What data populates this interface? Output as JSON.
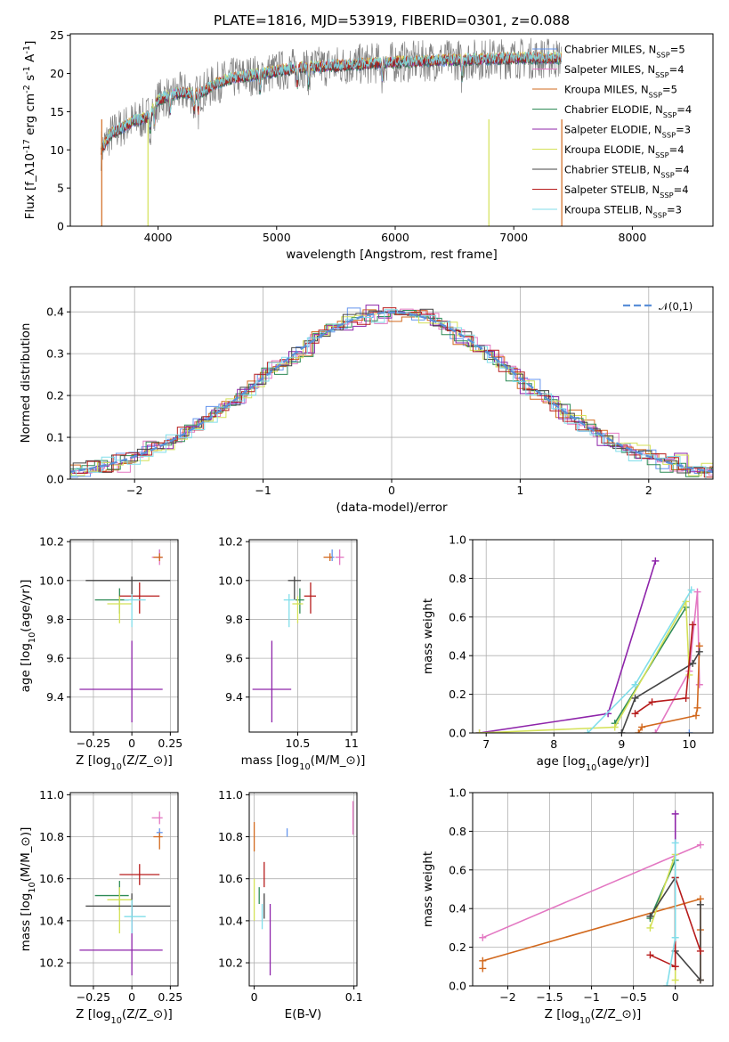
{
  "chart_data": [
    {
      "id": "spectrum",
      "type": "line",
      "title": "PLATE=1816, MJD=53919, FIBERID=0301, z=0.088",
      "xlabel": "wavelength [Angstrom, rest frame]",
      "ylabel": "Flux [f$_\\lambda$10$^{-17}$ erg cm$^{-2}$ s$^{-1}$ A$^{-1}$]",
      "xlim": [
        3260,
        8680
      ],
      "ylim": [
        0,
        25.2
      ],
      "xticks": [
        4000,
        5000,
        6000,
        7000,
        8000
      ],
      "yticks": [
        0,
        5,
        10,
        15,
        20,
        25
      ],
      "grid": false,
      "legend_position": "upper right",
      "continuum": {
        "x": [
          3520,
          3600,
          3700,
          3800,
          3900,
          4000,
          4100,
          4200,
          4300,
          4400,
          4500,
          4600,
          4800,
          5000,
          5200,
          5500,
          5800,
          6000,
          6200,
          6500,
          6800,
          7000,
          7200,
          7400
        ],
        "y": [
          10,
          12,
          13,
          13.8,
          14.2,
          16.5,
          17.2,
          17.5,
          17.3,
          17.8,
          18.8,
          19.3,
          19.8,
          20.3,
          20.8,
          21.0,
          21.3,
          21.5,
          21.6,
          21.8,
          21.9,
          22.0,
          22.0,
          22.0
        ]
      },
      "series": [
        {
          "name": "Chabrier MILES, N$_{SSP}$=5",
          "color": "#6495ed"
        },
        {
          "name": "Salpeter MILES, N$_{SSP}$=4",
          "color": "#e377c2"
        },
        {
          "name": "Kroupa MILES, N$_{SSP}$=5",
          "color": "#d2691e"
        },
        {
          "name": "Chabrier ELODIE, N$_{SSP}$=4",
          "color": "#2e8b57"
        },
        {
          "name": "Salpeter ELODIE, N$_{SSP}$=3",
          "color": "#8e24aa"
        },
        {
          "name": "Kroupa ELODIE, N$_{SSP}$=4",
          "color": "#d4e157"
        },
        {
          "name": "Chabrier STELIB, N$_{SSP}$=4",
          "color": "#444444"
        },
        {
          "name": "Salpeter STELIB, N$_{SSP}$=4",
          "color": "#b71c1c"
        },
        {
          "name": "Kroupa STELIB, N$_{SSP}$=3",
          "color": "#80deea"
        }
      ]
    },
    {
      "id": "residuals",
      "type": "histogram",
      "xlabel": "(data-model)/error",
      "ylabel": "Normed distribution",
      "xlim": [
        -2.5,
        2.5
      ],
      "ylim": [
        0,
        0.46
      ],
      "xticks": [
        -2,
        -1,
        0,
        1,
        2
      ],
      "yticks": [
        0.0,
        0.1,
        0.2,
        0.3,
        0.4
      ],
      "grid": true,
      "legend_position": "upper right",
      "reference": {
        "name": "$\\mathcal{N}(0,1)$",
        "color": "#5b8fd8"
      },
      "bin_width": 0.1
    },
    {
      "id": "age_vs_Z",
      "type": "errorbar",
      "xlabel": "Z [log$_{10}$($Z/Z_\\odot$)]",
      "ylabel": "age  [log$_{10}$($age/yr$)]",
      "xlim": [
        -0.4,
        0.3
      ],
      "ylim": [
        9.22,
        10.21
      ],
      "xticks": [
        -0.25,
        0.0,
        0.25
      ],
      "yticks": [
        9.4,
        9.6,
        9.8,
        10.0,
        10.2
      ],
      "grid": true
    },
    {
      "id": "age_vs_mass",
      "type": "errorbar",
      "xlabel": "mass [log$_{10}$($M/M_\\odot$)]",
      "xlim": [
        10.05,
        11.05
      ],
      "ylim": [
        9.22,
        10.21
      ],
      "xticks": [
        10.5,
        11.0
      ],
      "yticks": [
        9.4,
        9.6,
        9.8,
        10.0,
        10.2
      ],
      "grid": true
    },
    {
      "id": "weight_vs_age",
      "type": "line",
      "xlabel": "age  [log$_{10}$($age/yr$)]",
      "ylabel": "mass weight",
      "xlim": [
        6.8,
        10.35
      ],
      "ylim": [
        0,
        1.0
      ],
      "xticks": [
        7,
        8,
        9,
        10
      ],
      "yticks": [
        0.0,
        0.2,
        0.4,
        0.6,
        0.8,
        1.0
      ],
      "grid": true
    },
    {
      "id": "mass_vs_Z",
      "type": "errorbar",
      "xlabel": "Z [log$_{10}$($Z/Z_\\odot$)]",
      "ylabel": "mass [log$_{10}$($M/M_\\odot$)]",
      "xlim": [
        -0.4,
        0.3
      ],
      "ylim": [
        10.09,
        11.01
      ],
      "xticks": [
        -0.25,
        0.0,
        0.25
      ],
      "yticks": [
        10.2,
        10.4,
        10.6,
        10.8,
        11.0
      ],
      "grid": true
    },
    {
      "id": "mass_vs_ebv",
      "type": "errorbar",
      "xlabel": "E(B-V)",
      "xlim": [
        -0.005,
        0.103
      ],
      "ylim": [
        10.09,
        11.01
      ],
      "xticks": [
        0.0,
        0.1
      ],
      "yticks": [
        10.2,
        10.4,
        10.6,
        10.8,
        11.0
      ],
      "grid": true
    },
    {
      "id": "weight_vs_Z",
      "type": "line",
      "xlabel": "Z [log$_{10}$($Z/Z_\\odot$)]",
      "ylabel": "mass weight",
      "xlim": [
        -2.42,
        0.45
      ],
      "ylim": [
        0,
        1.0
      ],
      "xticks": [
        -2.0,
        -1.5,
        -1.0,
        -0.5,
        0.0
      ],
      "yticks": [
        0.0,
        0.2,
        0.4,
        0.6,
        0.8,
        1.0
      ],
      "grid": true
    }
  ],
  "models": [
    {
      "name": "Chabrier MILES",
      "color": "#6495ed",
      "age": 10.12,
      "age_err": [
        0.02,
        0.04
      ],
      "Z": 0.18,
      "Z_err": [
        0.02,
        0.02
      ],
      "mass": 10.82,
      "mass_err": [
        0.02,
        0.02
      ],
      "mass_x_err": [
        0.02,
        0.02
      ],
      "ebv": 0.033,
      "ebv_err": [
        0.02,
        0.02
      ],
      "weights_age": [
        [
          10.0,
          0.0
        ]
      ],
      "weights_Z": []
    },
    {
      "name": "Salpeter MILES",
      "color": "#e377c2",
      "age": 10.12,
      "age_err": [
        0.04,
        0.04
      ],
      "Z": 0.18,
      "Z_err": [
        0.05,
        0.02
      ],
      "mass": 10.89,
      "mass_err": [
        0.03,
        0.03
      ],
      "mass_x_err": [
        0.04,
        0.04
      ],
      "ebv": 0.099,
      "ebv_err": [
        0.08,
        0.08
      ],
      "weights_age": [
        [
          9.5,
          0.0
        ],
        [
          10.0,
          0.32
        ],
        [
          10.12,
          0.73
        ],
        [
          10.15,
          0.25
        ]
      ],
      "weights_Z": [
        [
          -2.3,
          0.25
        ],
        [
          0.3,
          0.73
        ]
      ]
    },
    {
      "name": "Kroupa MILES",
      "color": "#d2691e",
      "age": 10.12,
      "age_err": [
        0.02,
        0.02
      ],
      "Z": 0.18,
      "Z_err": [
        0.04,
        0.02
      ],
      "mass": 10.8,
      "mass_err": [
        0.06,
        0.02
      ],
      "mass_x_err": [
        0.06,
        0.02
      ],
      "ebv": 0.0,
      "ebv_err": [
        0.07,
        0.07
      ],
      "weights_age": [
        [
          9.25,
          0.0
        ],
        [
          9.3,
          0.03
        ],
        [
          10.1,
          0.09
        ],
        [
          10.12,
          0.13
        ],
        [
          10.15,
          0.45
        ]
      ],
      "weights_Z": [
        [
          -2.3,
          0.09
        ],
        [
          -2.3,
          0.13
        ],
        [
          0.3,
          0.45
        ],
        [
          0.3,
          0.29
        ],
        [
          0.3,
          0.03
        ]
      ]
    },
    {
      "name": "Chabrier ELODIE",
      "color": "#2e8b57",
      "age": 9.9,
      "age_err": [
        0.07,
        0.06
      ],
      "Z": -0.08,
      "Z_err": [
        0.16,
        0.06
      ],
      "mass": 10.52,
      "mass_err": [
        0.07,
        0.07
      ],
      "mass_x_err": [
        0.04,
        0.04
      ],
      "ebv": 0.005,
      "ebv_err": [
        0.04,
        0.04
      ],
      "weights_age": [
        [
          8.9,
          0.05
        ],
        [
          9.95,
          0.65
        ]
      ],
      "weights_Z": [
        [
          -0.3,
          0.35
        ],
        [
          0.0,
          0.65
        ]
      ]
    },
    {
      "name": "Salpeter ELODIE",
      "color": "#8e24aa",
      "age": 9.44,
      "age_err": [
        0.17,
        0.25
      ],
      "Z": 0.0,
      "Z_err": [
        0.34,
        0.2
      ],
      "mass": 10.26,
      "mass_err": [
        0.12,
        0.22
      ],
      "mass_x_err": [
        0.18,
        0.18
      ],
      "ebv": 0.016,
      "ebv_err": [
        0.12,
        0.22
      ],
      "weights_age": [
        [
          6.9,
          0.0
        ],
        [
          8.8,
          0.1
        ],
        [
          9.5,
          0.89
        ]
      ],
      "weights_Z": [
        [
          0.0,
          0.1
        ],
        [
          0.0,
          0.89
        ]
      ]
    },
    {
      "name": "Kroupa ELODIE",
      "color": "#d4e157",
      "age": 9.88,
      "age_err": [
        0.1,
        0.04
      ],
      "Z": -0.08,
      "Z_err": [
        0.08,
        0.08
      ],
      "mass": 10.5,
      "mass_err": [
        0.16,
        0.06
      ],
      "mass_x_err": [
        0.05,
        0.05
      ],
      "ebv": 0.0,
      "ebv_err": [
        0.1,
        0.1
      ],
      "weights_age": [
        [
          6.9,
          0.0
        ],
        [
          8.9,
          0.03
        ],
        [
          9.95,
          0.68
        ],
        [
          10.0,
          0.3
        ]
      ],
      "weights_Z": [
        [
          -0.3,
          0.3
        ],
        [
          0.0,
          0.68
        ],
        [
          0.0,
          0.03
        ]
      ]
    },
    {
      "name": "Chabrier STELIB",
      "color": "#444444",
      "age": 10.0,
      "age_err": [
        0.1,
        0.02
      ],
      "Z": 0.0,
      "Z_err": [
        0.3,
        0.25
      ],
      "mass": 10.47,
      "mass_err": [
        0.06,
        0.06
      ],
      "mass_x_err": [
        0.06,
        0.06
      ],
      "ebv": 0.01,
      "ebv_err": [
        0.06,
        0.06
      ],
      "weights_age": [
        [
          9.0,
          0.0
        ],
        [
          9.2,
          0.18
        ],
        [
          10.05,
          0.36
        ],
        [
          10.15,
          0.42
        ]
      ],
      "weights_Z": [
        [
          -0.3,
          0.36
        ],
        [
          0.0,
          0.56
        ],
        [
          0.0,
          0.18
        ],
        [
          0.3,
          0.03
        ],
        [
          0.3,
          0.42
        ]
      ]
    },
    {
      "name": "Salpeter STELIB",
      "color": "#b71c1c",
      "age": 9.92,
      "age_err": [
        0.09,
        0.07
      ],
      "Z": 0.05,
      "Z_err": [
        0.13,
        0.13
      ],
      "mass": 10.62,
      "mass_err": [
        0.05,
        0.05
      ],
      "mass_x_err": [
        0.06,
        0.05
      ],
      "ebv": 0.01,
      "ebv_err": [
        0.06,
        0.06
      ],
      "weights_age": [
        [
          9.2,
          0.1
        ],
        [
          9.45,
          0.16
        ],
        [
          9.95,
          0.18
        ],
        [
          10.05,
          0.56
        ]
      ],
      "weights_Z": [
        [
          -0.3,
          0.16
        ],
        [
          0.0,
          0.1
        ],
        [
          0.0,
          0.56
        ],
        [
          0.3,
          0.18
        ]
      ]
    },
    {
      "name": "Kroupa STELIB",
      "color": "#80deea",
      "age": 9.9,
      "age_err": [
        0.14,
        0.03
      ],
      "Z": 0.0,
      "Z_err": [
        0.05,
        0.09
      ],
      "mass": 10.42,
      "mass_err": [
        0.08,
        0.08
      ],
      "mass_x_err": [
        0.05,
        0.05
      ],
      "ebv": 0.008,
      "ebv_err": [
        0.06,
        0.06
      ],
      "weights_age": [
        [
          8.5,
          0.0
        ],
        [
          9.2,
          0.25
        ],
        [
          10.03,
          0.74
        ]
      ],
      "weights_Z": [
        [
          -0.1,
          0.0
        ],
        [
          0.0,
          0.25
        ],
        [
          0.0,
          0.74
        ]
      ]
    }
  ]
}
